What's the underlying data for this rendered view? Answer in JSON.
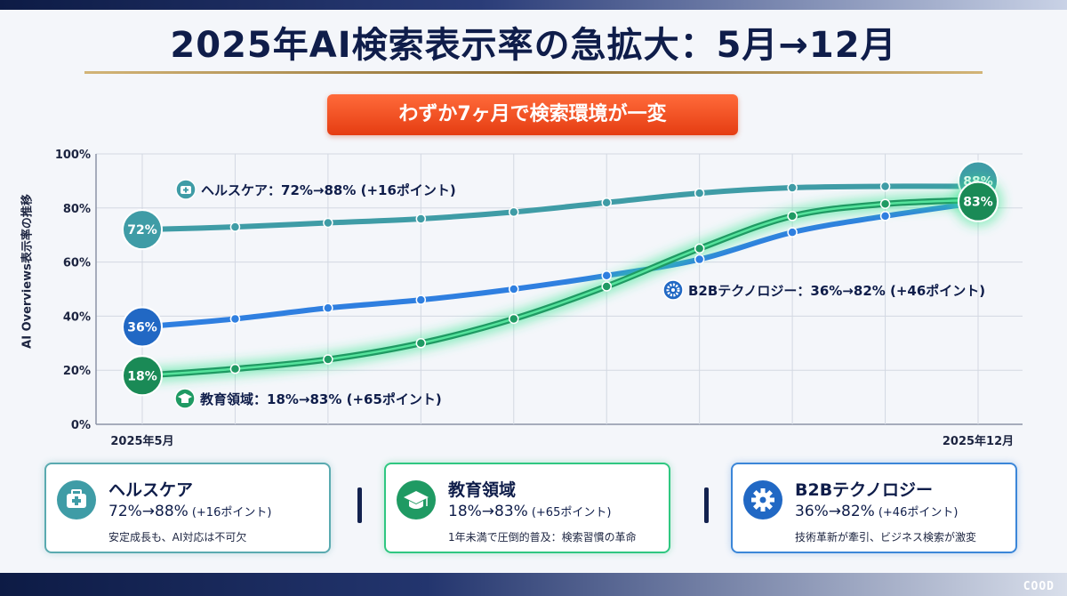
{
  "title": "2025年AI検索表示率の急拡大：5月→12月",
  "banner": "わずか7ヶ月で検索環境が一変",
  "chart_data": {
    "type": "line",
    "ylabel": "AI Overviews表示率の推移",
    "ylim": [
      0,
      100
    ],
    "yticks": [
      "0%",
      "20%",
      "40%",
      "60%",
      "80%",
      "100%"
    ],
    "xtick_first": "2025年5月",
    "xtick_last": "2025年12月",
    "grid": true,
    "series": [
      {
        "name": "ヘルスケア",
        "color": "#3f9ca6",
        "values": [
          72,
          73,
          74.5,
          76,
          78.5,
          82,
          85.5,
          87.5,
          88,
          88
        ],
        "start_label": "72%",
        "end_label": "88%",
        "callout": "ヘルスケア：72%→88% (+16ポイント)"
      },
      {
        "name": "B2Bテクノロジー",
        "color": "#2f7fe0",
        "values": [
          36,
          39,
          43,
          46,
          50,
          55,
          61,
          71,
          77,
          82
        ],
        "start_label": "36%",
        "end_label": "",
        "callout": "B2Bテクノロジー：36%→82% (+46ポイント)"
      },
      {
        "name": "教育領域",
        "color": "#1f9a63",
        "values": [
          18,
          20.5,
          24,
          30,
          39,
          51,
          65,
          77,
          81.5,
          83
        ],
        "start_label": "18%",
        "end_label": "83%",
        "callout": "教育領域：18%→83% (+65ポイント)"
      }
    ]
  },
  "cards": [
    {
      "title": "ヘルスケア",
      "values": "72%→88%",
      "delta": "(+16ポイント)",
      "note": "安定成長も、AI対応は不可欠",
      "icon": "medical-bag-icon",
      "border": "#5aaab0",
      "icon_color": "#3f9ca6"
    },
    {
      "title": "教育領域",
      "values": "18%→83%",
      "delta": "(+65ポイント)",
      "note": "1年未満で圧倒的普及：検索習慣の革命",
      "icon": "graduation-cap-icon",
      "border": "#2fc781",
      "icon_color": "#1f9a63"
    },
    {
      "title": "B2Bテクノロジー",
      "values": "36%→82%",
      "delta": "(+46ポイント)",
      "note": "技術革新が牽引、ビジネス検索が激変",
      "icon": "gear-icon",
      "border": "#3b86d8",
      "icon_color": "#2168c4"
    }
  ],
  "logo": "COOD"
}
